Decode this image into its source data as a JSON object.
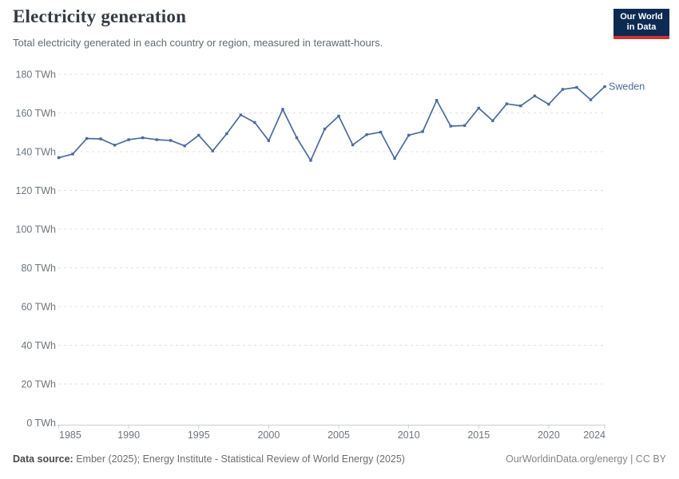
{
  "header": {
    "title": "Electricity generation",
    "subtitle": "Total electricity generated in each country or region, measured in terawatt-hours.",
    "logo": {
      "line1": "Our World",
      "line2": "in Data",
      "bg_color": "#0d2a52",
      "accent_color": "#d2322e"
    }
  },
  "chart_data": {
    "type": "line",
    "title": "Electricity generation",
    "unit": "TWh",
    "xlabel": "",
    "ylabel": "",
    "xlim": [
      1985,
      2024
    ],
    "ylim": [
      0,
      180
    ],
    "xticks": [
      1985,
      1990,
      1995,
      2000,
      2005,
      2010,
      2015,
      2020,
      2024
    ],
    "yticks": [
      0,
      20,
      40,
      60,
      80,
      100,
      120,
      140,
      160,
      180
    ],
    "ytick_suffix": " TWh",
    "grid": "horizontal-dashed",
    "legend_position": "end-of-line-label",
    "series": [
      {
        "name": "Sweden",
        "color": "#4c6a9c",
        "x": [
          1985,
          1986,
          1987,
          1988,
          1989,
          1990,
          1991,
          1992,
          1993,
          1994,
          1995,
          1996,
          1997,
          1998,
          1999,
          2000,
          2001,
          2002,
          2003,
          2004,
          2005,
          2006,
          2007,
          2008,
          2009,
          2010,
          2011,
          2012,
          2013,
          2014,
          2015,
          2016,
          2017,
          2018,
          2019,
          2020,
          2021,
          2022,
          2023,
          2024
        ],
        "values": [
          136.9,
          138.8,
          146.8,
          146.6,
          143.4,
          146.2,
          147.2,
          146.2,
          145.8,
          143.0,
          148.5,
          140.4,
          149.3,
          159.0,
          155.1,
          145.7,
          161.9,
          147.2,
          135.5,
          151.7,
          158.4,
          143.5,
          148.8,
          150.1,
          136.5,
          148.5,
          150.4,
          166.5,
          153.2,
          153.5,
          162.5,
          156.0,
          164.7,
          163.7,
          168.8,
          164.5,
          172.2,
          173.2,
          166.8,
          173.6
        ]
      }
    ]
  },
  "footer": {
    "source_label": "Data source:",
    "source_text": " Ember (2025); Energy Institute - Statistical Review of World Energy (2025)",
    "link_text": "OurWorldinData.org/energy | CC BY"
  }
}
